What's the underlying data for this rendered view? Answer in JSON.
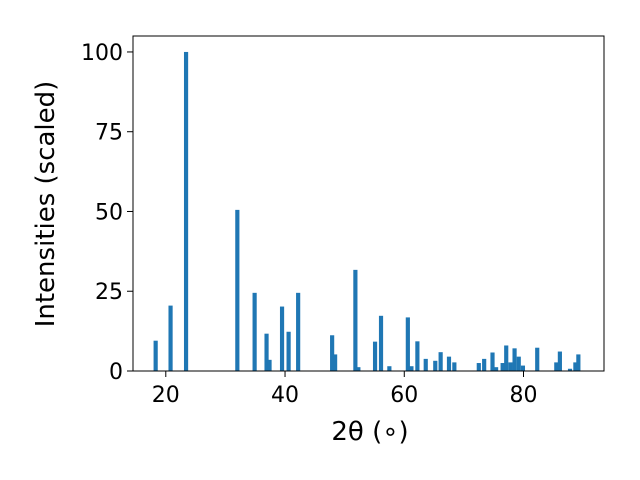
{
  "chart_data": {
    "type": "bar",
    "title": "",
    "xlabel": "2θ (∘)",
    "ylabel": "Intensities (scaled)",
    "xlim": [
      14.5,
      93.5
    ],
    "ylim": [
      0,
      105
    ],
    "x_ticks": [
      20,
      40,
      60,
      80
    ],
    "y_ticks": [
      0,
      25,
      50,
      75,
      100
    ],
    "grid": false,
    "bar_color": "#1f77b4",
    "bar_width": 0.7,
    "x": [
      18.3,
      20.8,
      23.4,
      32.0,
      34.9,
      36.9,
      37.4,
      39.5,
      40.6,
      42.2,
      47.9,
      48.4,
      51.8,
      52.3,
      55.1,
      56.1,
      57.5,
      60.6,
      61.2,
      62.2,
      63.6,
      65.2,
      66.1,
      67.5,
      68.4,
      72.5,
      73.4,
      74.8,
      75.4,
      76.5,
      77.1,
      77.8,
      78.5,
      79.2,
      79.9,
      82.3,
      85.5,
      86.1,
      87.8,
      88.7,
      89.2
    ],
    "values": [
      9.5,
      20.5,
      100.0,
      50.5,
      24.5,
      11.7,
      3.5,
      20.2,
      12.3,
      24.5,
      11.2,
      5.2,
      31.7,
      1.2,
      9.2,
      17.3,
      1.5,
      16.8,
      1.5,
      9.3,
      3.8,
      3.2,
      5.9,
      4.5,
      2.7,
      2.5,
      3.8,
      5.8,
      1.2,
      2.5,
      8.0,
      2.7,
      7.1,
      4.5,
      1.7,
      7.3,
      2.7,
      6.1,
      0.7,
      2.7,
      5.2
    ]
  }
}
